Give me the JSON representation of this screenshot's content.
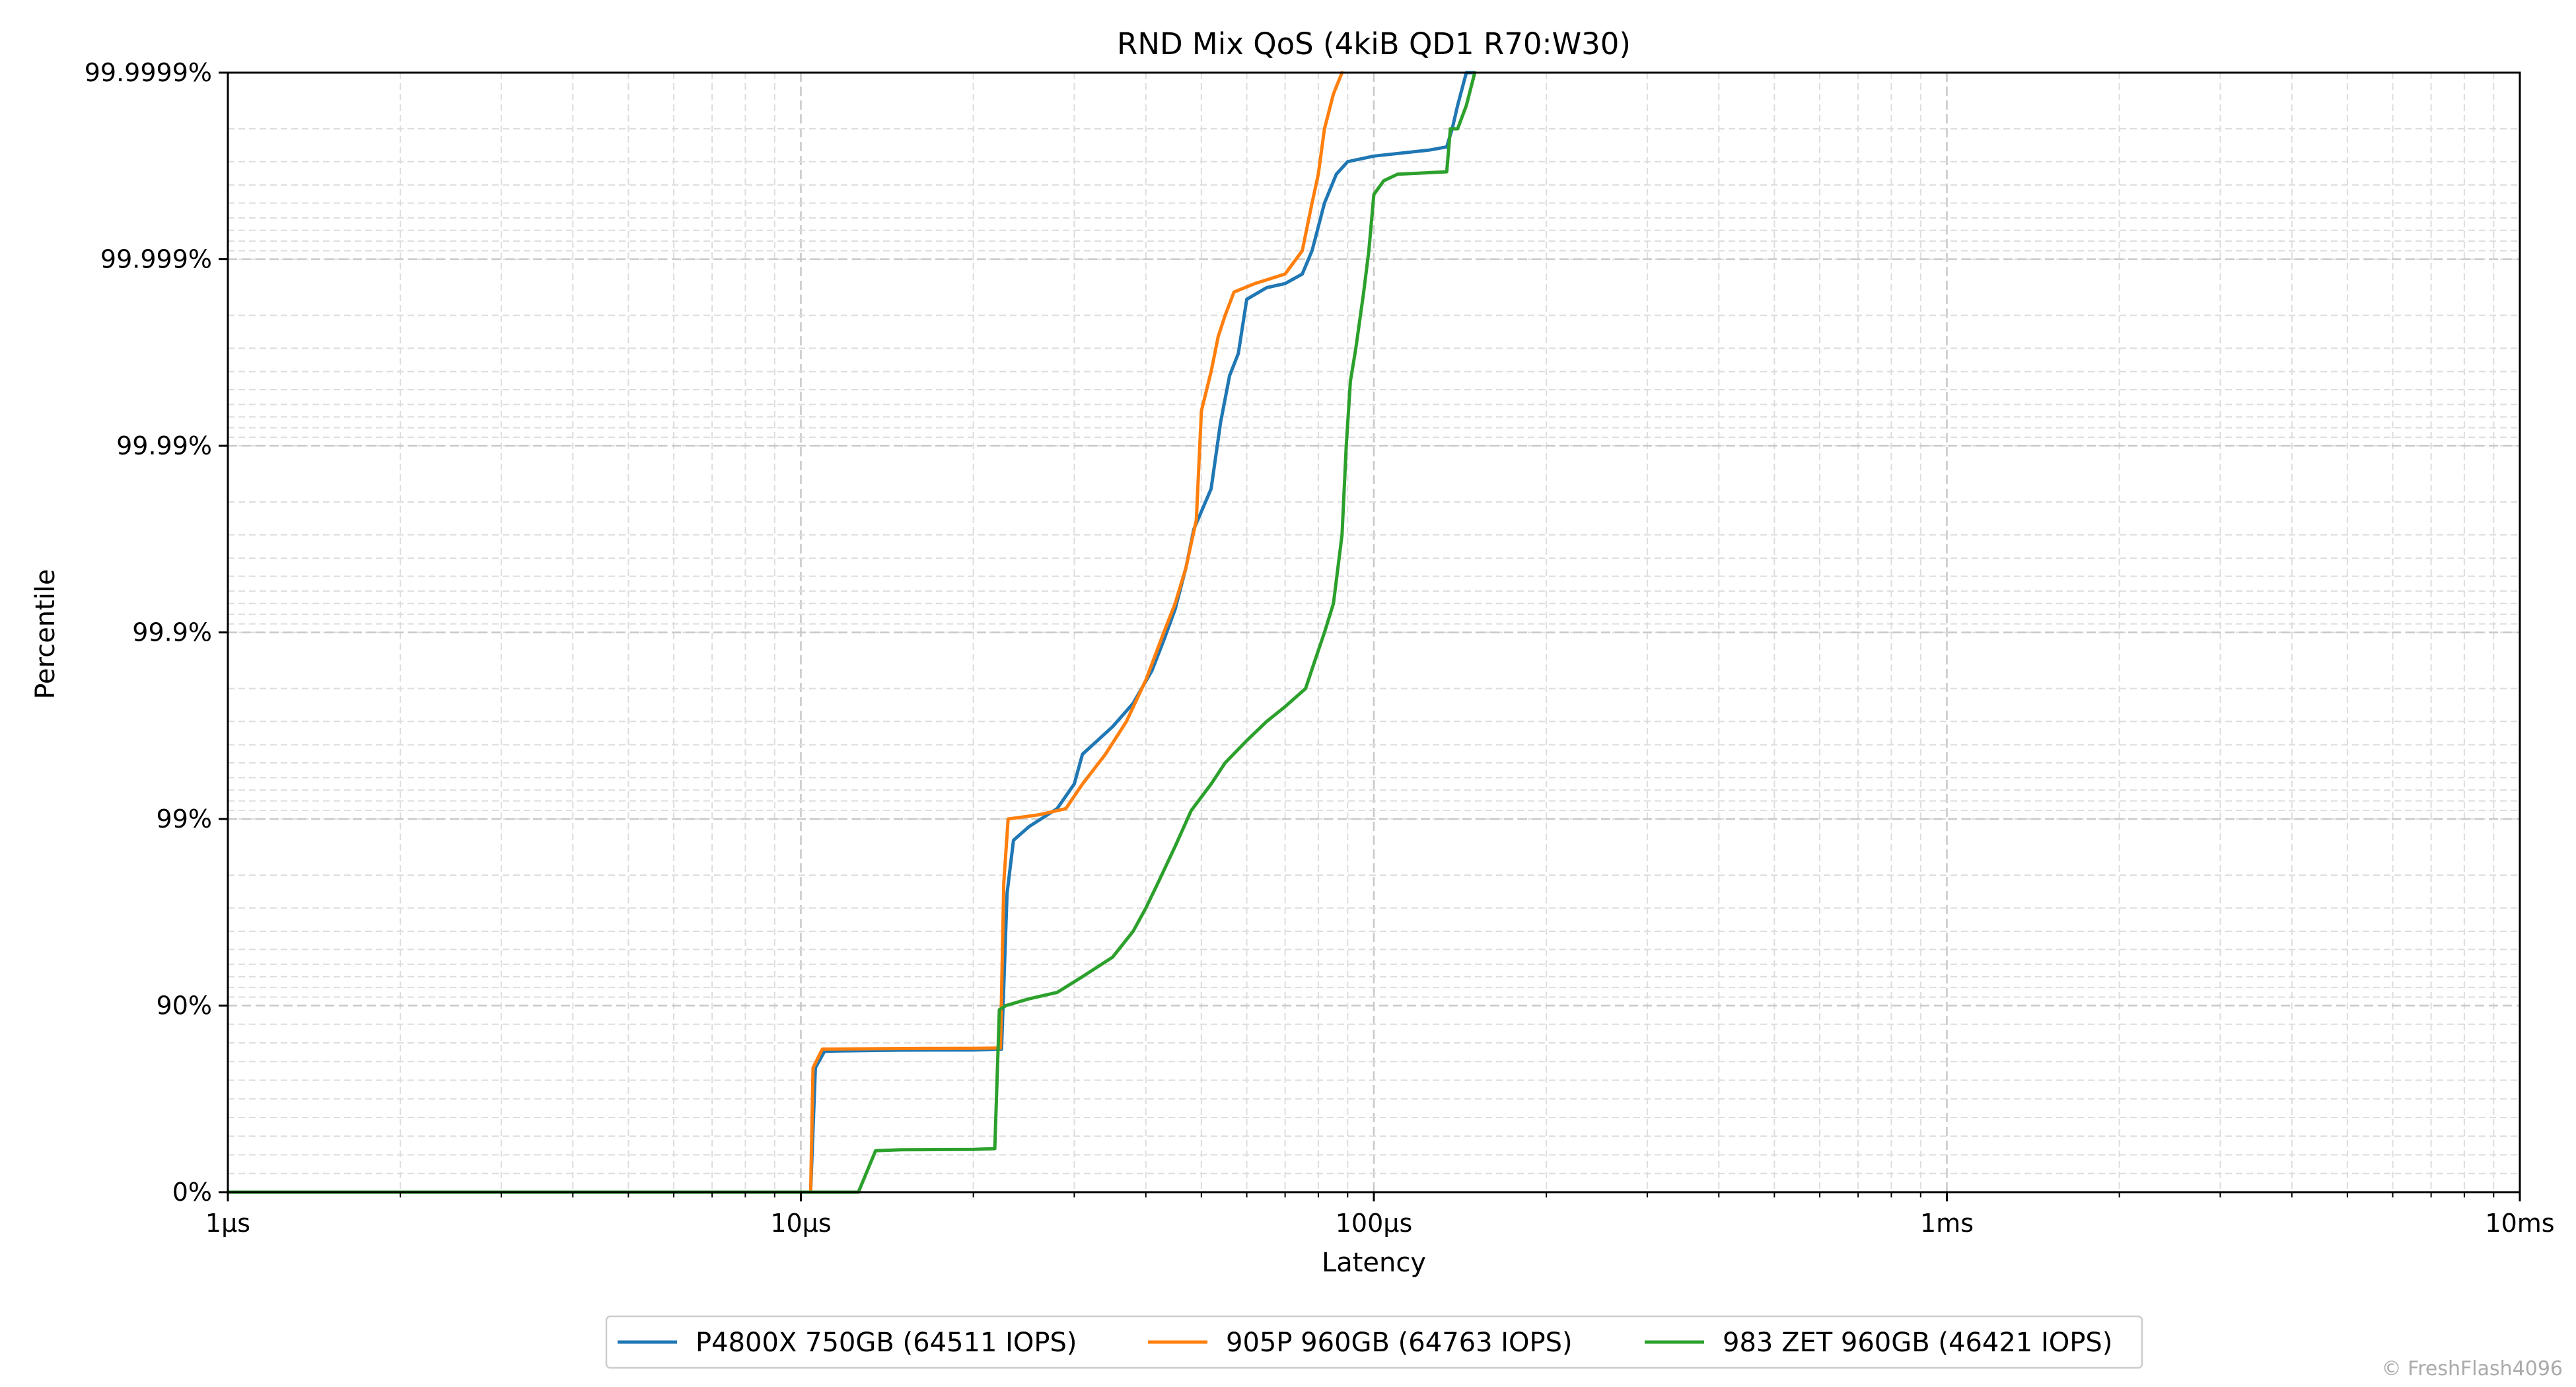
{
  "chart_data": {
    "type": "line",
    "title": "RND Mix QoS (4kiB QD1 R70:W30)",
    "xlabel": "Latency",
    "ylabel": "Percentile",
    "x_scale": "log",
    "xlim_us": [
      1,
      10000
    ],
    "x_ticks": [
      {
        "value": 1,
        "label": "1µs"
      },
      {
        "value": 10,
        "label": "10µs"
      },
      {
        "value": 100,
        "label": "100µs"
      },
      {
        "value": 1000,
        "label": "1ms"
      },
      {
        "value": 10000,
        "label": "10ms"
      }
    ],
    "y_scale": "nines",
    "y_ticks": [
      {
        "value": 0,
        "label": "0%"
      },
      {
        "value": 90,
        "label": "90%"
      },
      {
        "value": 99,
        "label": "99%"
      },
      {
        "value": 99.9,
        "label": "99.9%"
      },
      {
        "value": 99.99,
        "label": "99.99%"
      },
      {
        "value": 99.999,
        "label": "99.999%"
      },
      {
        "value": 99.9999,
        "label": "99.9999%"
      }
    ],
    "grid": true,
    "legend_position": "bottom-center",
    "watermark": "© FreshFlash4096",
    "series": [
      {
        "name": "P4800X 750GB (64511 IOPS)",
        "color": "#1f77b4",
        "points": [
          [
            1,
            0
          ],
          [
            10.4,
            0
          ],
          [
            10.6,
            60
          ],
          [
            11.0,
            68
          ],
          [
            15,
            68.5
          ],
          [
            20,
            68.6
          ],
          [
            22.4,
            69
          ],
          [
            22.9,
            97.5
          ],
          [
            23.5,
            98.7
          ],
          [
            25,
            98.9
          ],
          [
            28,
            99.12
          ],
          [
            30,
            99.35
          ],
          [
            31,
            99.55
          ],
          [
            35,
            99.68
          ],
          [
            38,
            99.76
          ],
          [
            41,
            99.84
          ],
          [
            43,
            99.89
          ],
          [
            45,
            99.925
          ],
          [
            47,
            99.955
          ],
          [
            48.5,
            99.972
          ],
          [
            52,
            99.983
          ],
          [
            54,
            99.9925
          ],
          [
            56,
            99.9958
          ],
          [
            58,
            99.9968
          ],
          [
            60,
            99.99836
          ],
          [
            65,
            99.99858
          ],
          [
            70,
            99.99865
          ],
          [
            75,
            99.9988
          ],
          [
            78,
            99.9991
          ],
          [
            82,
            99.9995
          ],
          [
            86,
            99.99965
          ],
          [
            90,
            99.9997
          ],
          [
            100,
            99.99972
          ],
          [
            125,
            99.99974
          ],
          [
            134,
            99.99975
          ],
          [
            137,
            99.9998
          ],
          [
            140,
            99.99985
          ],
          [
            145,
            99.99991
          ],
          [
            150,
            99.9999
          ]
        ]
      },
      {
        "name": "905P 960GB (64763 IOPS)",
        "color": "#ff7f0e",
        "points": [
          [
            1,
            0
          ],
          [
            10.4,
            0
          ],
          [
            10.5,
            60
          ],
          [
            10.9,
            69
          ],
          [
            15,
            69.3
          ],
          [
            20,
            69.4
          ],
          [
            22.3,
            69.5
          ],
          [
            22.6,
            97.8
          ],
          [
            23,
            99.0
          ],
          [
            26,
            99.05
          ],
          [
            29,
            99.12
          ],
          [
            31,
            99.35
          ],
          [
            34,
            99.55
          ],
          [
            37,
            99.7
          ],
          [
            40,
            99.82
          ],
          [
            43,
            99.9
          ],
          [
            45,
            99.93
          ],
          [
            47,
            99.955
          ],
          [
            49,
            99.975
          ],
          [
            50,
            99.9935
          ],
          [
            52,
            99.996
          ],
          [
            53.5,
            99.9974
          ],
          [
            55,
            99.998
          ],
          [
            57,
            99.9985
          ],
          [
            62,
            99.99865
          ],
          [
            70,
            99.9988
          ],
          [
            75,
            99.9991
          ],
          [
            78,
            99.9995
          ],
          [
            80,
            99.99965
          ],
          [
            82,
            99.9998
          ],
          [
            85,
            99.99987
          ],
          [
            88,
            99.9999
          ]
        ]
      },
      {
        "name": "983 ZET 960GB (46421 IOPS)",
        "color": "#2ca02c",
        "points": [
          [
            1,
            0
          ],
          [
            12.6,
            0
          ],
          [
            13.5,
            20
          ],
          [
            15,
            20.5
          ],
          [
            20,
            20.6
          ],
          [
            21.8,
            21
          ],
          [
            22.2,
            88
          ],
          [
            22.8,
            90
          ],
          [
            25,
            90.8
          ],
          [
            28,
            91.5
          ],
          [
            31,
            93
          ],
          [
            35,
            94.5
          ],
          [
            38,
            96
          ],
          [
            40,
            97
          ],
          [
            42,
            97.8
          ],
          [
            45,
            98.6
          ],
          [
            48,
            99.1
          ],
          [
            52,
            99.35
          ],
          [
            55,
            99.5
          ],
          [
            60,
            99.62
          ],
          [
            65,
            99.7
          ],
          [
            70,
            99.75
          ],
          [
            76,
            99.8
          ],
          [
            79,
            99.86
          ],
          [
            82,
            99.9
          ],
          [
            85,
            99.93
          ],
          [
            88,
            99.97
          ],
          [
            89.5,
            99.99
          ],
          [
            91,
            99.9955
          ],
          [
            93,
            99.997
          ],
          [
            96,
            99.9985
          ],
          [
            98,
            99.9991
          ],
          [
            100,
            99.99955
          ],
          [
            104,
            99.99962
          ],
          [
            110,
            99.99965
          ],
          [
            134,
            99.99966
          ],
          [
            136,
            99.9998
          ],
          [
            140,
            99.9998
          ],
          [
            145,
            99.99985
          ],
          [
            150,
            99.9999
          ]
        ]
      }
    ]
  }
}
